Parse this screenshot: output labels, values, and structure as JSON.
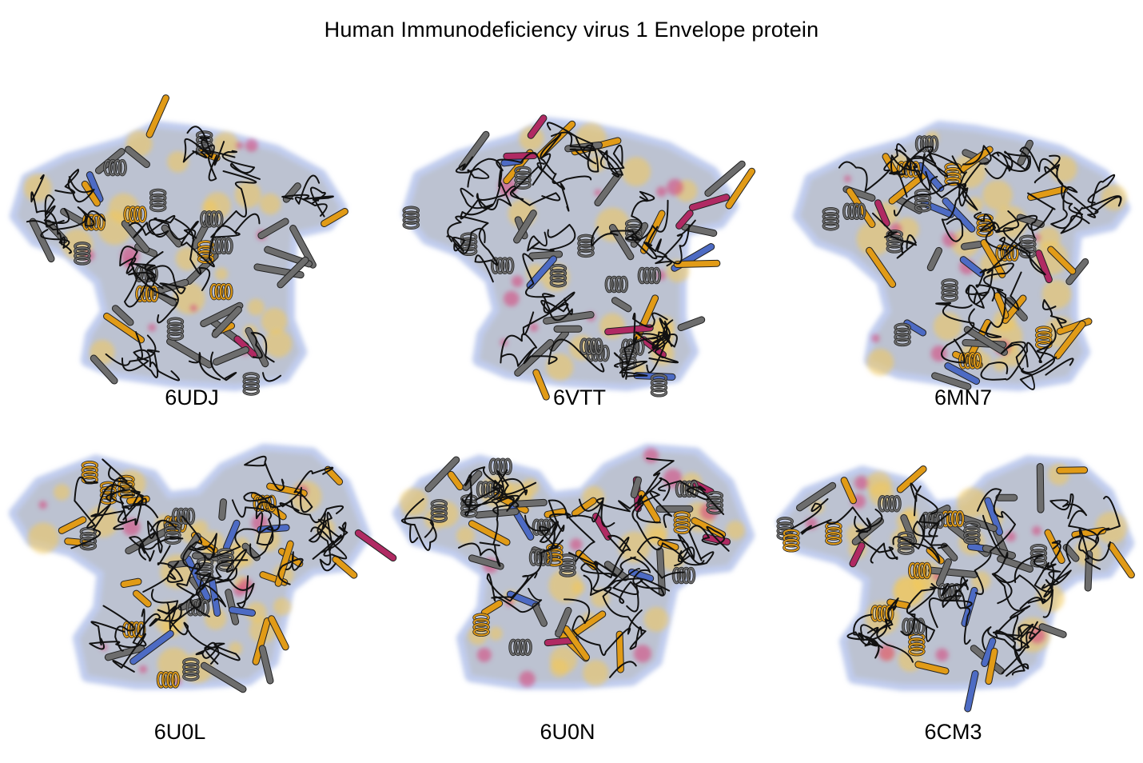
{
  "title": "Human Immunodeficiency virus 1 Envelope protein",
  "palette": {
    "surface_gray": "#b9b9b9",
    "surface_blue": "#8da3e0",
    "surface_yellow": "#f3c85a",
    "surface_magenta": "#d5487f",
    "ribbon_gray": "#6d6d6d",
    "ribbon_orange": "#e19b17",
    "ribbon_blue": "#4d6bc4",
    "ribbon_magenta": "#b02a63",
    "coil_black": "#111111"
  },
  "structures": [
    {
      "id": "6UDJ",
      "variant": "closed",
      "orange": 0.18,
      "magenta": 0.12
    },
    {
      "id": "6VTT",
      "variant": "closed",
      "orange": 0.12,
      "magenta": 0.16
    },
    {
      "id": "6MN7",
      "variant": "closed",
      "orange": 0.38,
      "magenta": 0.08
    },
    {
      "id": "6U0L",
      "variant": "open",
      "orange": 0.42,
      "magenta": 0.12
    },
    {
      "id": "6U0N",
      "variant": "open",
      "orange": 0.4,
      "magenta": 0.12
    },
    {
      "id": "6CM3",
      "variant": "open",
      "orange": 0.36,
      "magenta": 0.12
    }
  ]
}
